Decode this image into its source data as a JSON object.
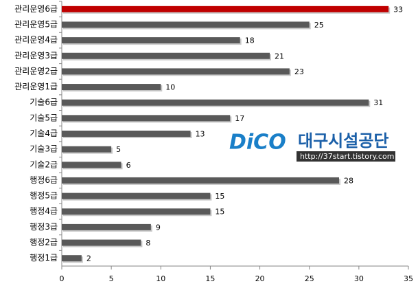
{
  "chart_data": {
    "type": "bar",
    "orientation": "horizontal",
    "categories": [
      "관리운영6급",
      "관리운영5급",
      "관리운영4급",
      "관리운영3급",
      "관리운영2급",
      "관리운영1급",
      "기술6급",
      "기술5급",
      "기술4급",
      "기술3급",
      "기술2급",
      "행정6급",
      "행정5급",
      "행정4급",
      "행정3급",
      "행정2급",
      "행정1급"
    ],
    "values": [
      33,
      25,
      18,
      21,
      23,
      10,
      31,
      17,
      13,
      5,
      6,
      28,
      15,
      15,
      9,
      8,
      2
    ],
    "colors": [
      "#c00000",
      "#595959",
      "#595959",
      "#595959",
      "#595959",
      "#595959",
      "#595959",
      "#595959",
      "#595959",
      "#595959",
      "#595959",
      "#595959",
      "#595959",
      "#595959",
      "#595959",
      "#595959",
      "#595959"
    ],
    "xlim": [
      0,
      35
    ],
    "xticks": [
      0,
      5,
      10,
      15,
      20,
      25,
      30,
      35
    ],
    "annotations": [
      "DiCO",
      "대구시설공단",
      "http://37start.tistory.com"
    ]
  }
}
